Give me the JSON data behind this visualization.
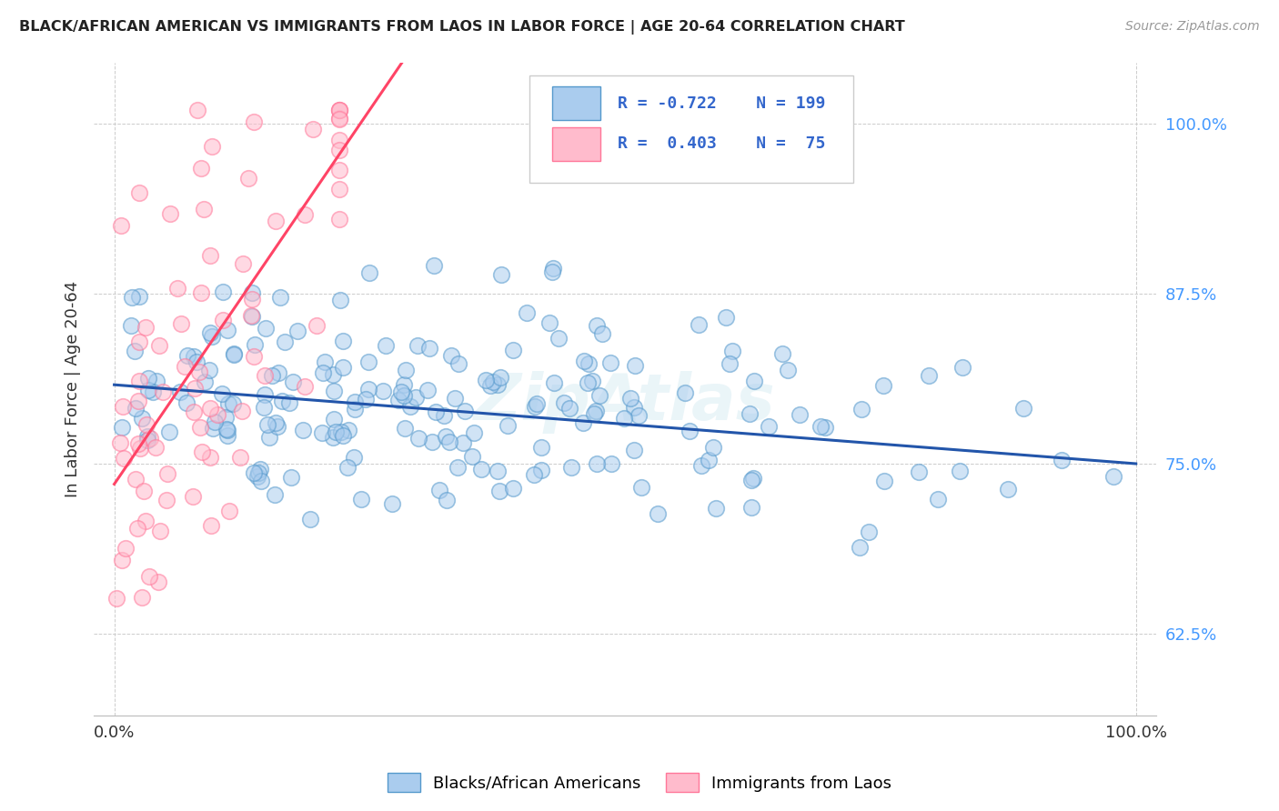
{
  "title": "BLACK/AFRICAN AMERICAN VS IMMIGRANTS FROM LAOS IN LABOR FORCE | AGE 20-64 CORRELATION CHART",
  "source": "Source: ZipAtlas.com",
  "ylabel": "In Labor Force | Age 20-64",
  "yticks": [
    "62.5%",
    "75.0%",
    "87.5%",
    "100.0%"
  ],
  "ytick_vals": [
    0.625,
    0.75,
    0.875,
    1.0
  ],
  "xlim": [
    -0.02,
    1.02
  ],
  "ylim": [
    0.565,
    1.045
  ],
  "blue_face_color": "#aaccee",
  "blue_edge_color": "#5599cc",
  "pink_face_color": "#ffbbcc",
  "pink_edge_color": "#ff7799",
  "blue_line_color": "#2255aa",
  "pink_line_color": "#ff4466",
  "blue_N": 199,
  "pink_N": 75,
  "blue_intercept": 0.808,
  "blue_slope": -0.058,
  "pink_intercept": 0.735,
  "pink_slope": 1.1,
  "pink_line_x_end": 0.3,
  "watermark": "ZipAtlas",
  "background_color": "#ffffff",
  "grid_color": "#cccccc",
  "ytick_color": "#4499ff",
  "legend_r_blue": "R = -0.722",
  "legend_n_blue": "N = 199",
  "legend_r_pink": "R =  0.403",
  "legend_n_pink": "N =  75"
}
